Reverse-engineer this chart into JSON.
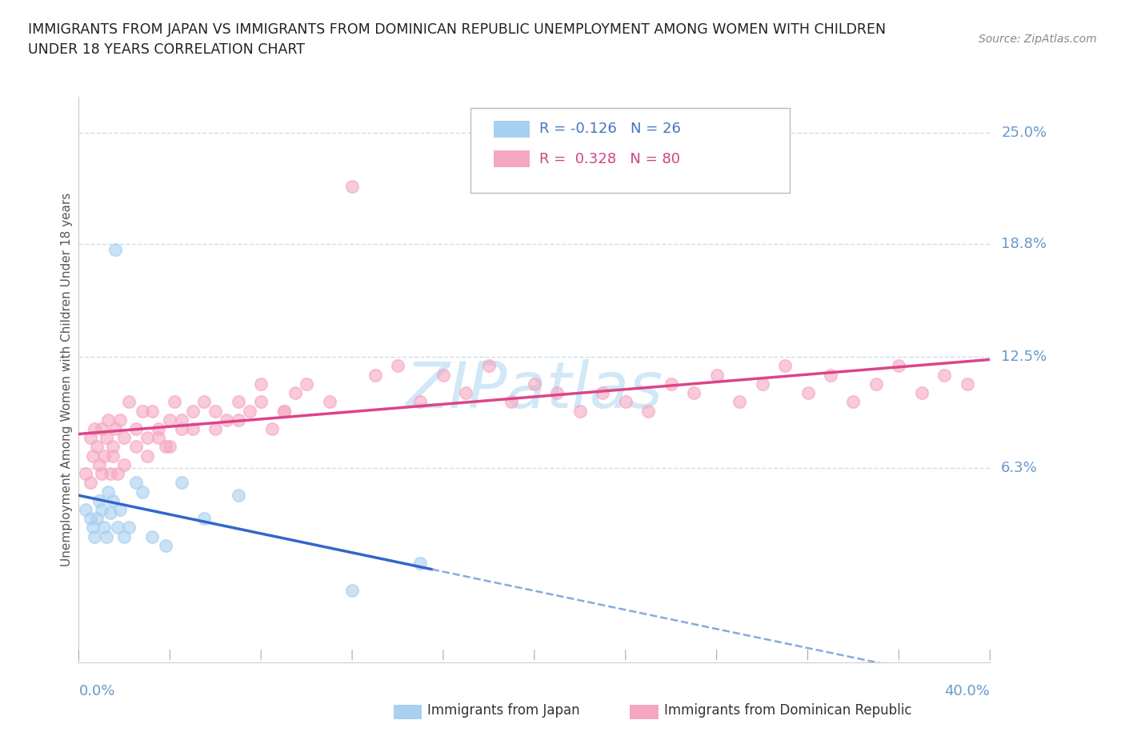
{
  "title_line1": "IMMIGRANTS FROM JAPAN VS IMMIGRANTS FROM DOMINICAN REPUBLIC UNEMPLOYMENT AMONG WOMEN WITH CHILDREN",
  "title_line2": "UNDER 18 YEARS CORRELATION CHART",
  "source": "Source: ZipAtlas.com",
  "ylabel": "Unemployment Among Women with Children Under 18 years",
  "ytick_vals": [
    0.063,
    0.125,
    0.188,
    0.25
  ],
  "ytick_labels": [
    "6.3%",
    "12.5%",
    "18.8%",
    "25.0%"
  ],
  "xlim": [
    0.0,
    0.4
  ],
  "ylim": [
    -0.045,
    0.27
  ],
  "legend_japan": "Immigrants from Japan",
  "legend_dr": "Immigrants from Dominican Republic",
  "R_japan": -0.126,
  "N_japan": 26,
  "R_dr": 0.328,
  "N_dr": 80,
  "color_japan": "#a8d0f0",
  "color_dr": "#f5a8c0",
  "trendline_japan_solid_color": "#3366cc",
  "trendline_japan_dash_color": "#88aadd",
  "trendline_dr_color": "#dd4488",
  "grid_color": "#ccddee",
  "tick_label_color": "#6699cc",
  "legend_japan_text_color": "#4477bb",
  "legend_dr_text_color": "#cc4488",
  "watermark_color": "#d0e8f8",
  "title_color": "#222222",
  "source_color": "#888888",
  "japan_x": [
    0.003,
    0.005,
    0.006,
    0.007,
    0.008,
    0.009,
    0.01,
    0.011,
    0.012,
    0.013,
    0.014,
    0.015,
    0.016,
    0.017,
    0.018,
    0.02,
    0.022,
    0.025,
    0.028,
    0.032,
    0.038,
    0.045,
    0.055,
    0.07,
    0.12,
    0.15
  ],
  "japan_y": [
    0.04,
    0.035,
    0.03,
    0.025,
    0.035,
    0.045,
    0.04,
    0.03,
    0.025,
    0.05,
    0.038,
    0.045,
    0.185,
    0.03,
    0.04,
    0.025,
    0.03,
    0.055,
    0.05,
    0.025,
    0.02,
    0.055,
    0.035,
    0.048,
    -0.005,
    0.01
  ],
  "dr_x": [
    0.003,
    0.005,
    0.006,
    0.007,
    0.008,
    0.009,
    0.01,
    0.011,
    0.012,
    0.013,
    0.014,
    0.015,
    0.016,
    0.017,
    0.018,
    0.02,
    0.022,
    0.025,
    0.028,
    0.03,
    0.032,
    0.035,
    0.038,
    0.04,
    0.042,
    0.045,
    0.05,
    0.055,
    0.06,
    0.065,
    0.07,
    0.075,
    0.08,
    0.085,
    0.09,
    0.095,
    0.1,
    0.11,
    0.12,
    0.13,
    0.14,
    0.15,
    0.16,
    0.17,
    0.18,
    0.19,
    0.2,
    0.21,
    0.22,
    0.23,
    0.24,
    0.25,
    0.26,
    0.27,
    0.28,
    0.29,
    0.3,
    0.31,
    0.32,
    0.33,
    0.34,
    0.35,
    0.36,
    0.37,
    0.38,
    0.39,
    0.005,
    0.01,
    0.015,
    0.02,
    0.025,
    0.03,
    0.035,
    0.04,
    0.045,
    0.05,
    0.06,
    0.07,
    0.08,
    0.09
  ],
  "dr_y": [
    0.06,
    0.08,
    0.07,
    0.085,
    0.075,
    0.065,
    0.085,
    0.07,
    0.08,
    0.09,
    0.06,
    0.075,
    0.085,
    0.06,
    0.09,
    0.08,
    0.1,
    0.075,
    0.095,
    0.08,
    0.095,
    0.085,
    0.075,
    0.09,
    0.1,
    0.085,
    0.095,
    0.1,
    0.085,
    0.09,
    0.1,
    0.095,
    0.11,
    0.085,
    0.095,
    0.105,
    0.11,
    0.1,
    0.22,
    0.115,
    0.12,
    0.1,
    0.115,
    0.105,
    0.12,
    0.1,
    0.11,
    0.105,
    0.095,
    0.105,
    0.1,
    0.095,
    0.11,
    0.105,
    0.115,
    0.1,
    0.11,
    0.12,
    0.105,
    0.115,
    0.1,
    0.11,
    0.12,
    0.105,
    0.115,
    0.11,
    0.055,
    0.06,
    0.07,
    0.065,
    0.085,
    0.07,
    0.08,
    0.075,
    0.09,
    0.085,
    0.095,
    0.09,
    0.1,
    0.095
  ],
  "trendline_japan_x1": 0.0,
  "trendline_japan_x_solid_end": 0.155,
  "trendline_japan_x2": 0.4,
  "trendline_dr_x1": 0.0,
  "trendline_dr_x2": 0.4
}
